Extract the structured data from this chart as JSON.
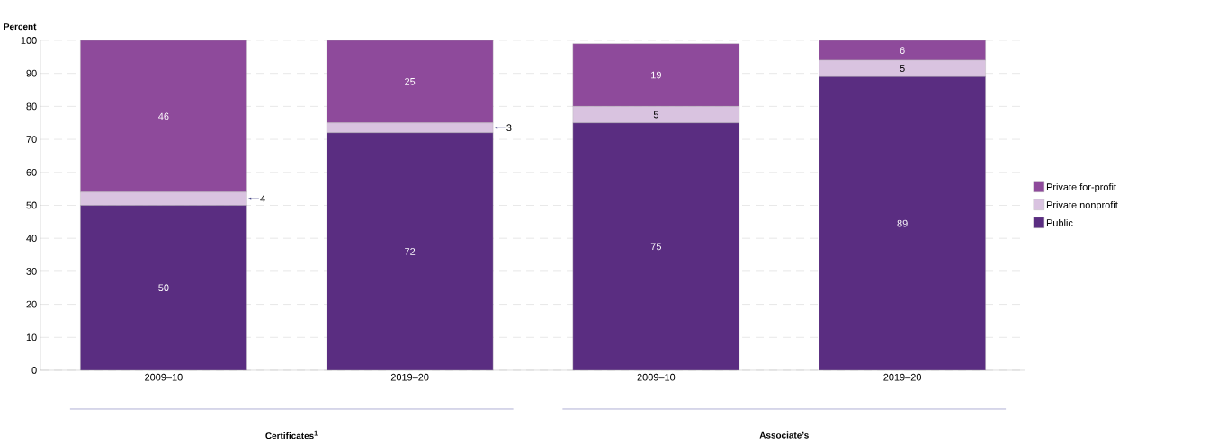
{
  "chart_data": {
    "type": "bar",
    "stacked": true,
    "ylabel": "Percent",
    "categories": [
      "2009–10",
      "2019–20",
      "2009–10",
      "2019–20"
    ],
    "series": [
      {
        "name": "Public",
        "color": "#5a2d81",
        "values": [
          50,
          72,
          75,
          89
        ]
      },
      {
        "name": "Private nonprofit",
        "color": "#d9c3e0",
        "values": [
          4,
          3,
          5,
          5
        ]
      },
      {
        "name": "Private for-profit",
        "color": "#8e4a9b",
        "values": [
          46,
          25,
          19,
          6
        ]
      }
    ],
    "ylim": [
      0,
      100
    ],
    "yticks": [
      0,
      10,
      20,
      30,
      40,
      50,
      60,
      70,
      80,
      90,
      100
    ],
    "grid": "y",
    "legend": "right",
    "data_labels": true,
    "annotations": [
      "Certificates$^{1}$",
      "Associate’s"
    ]
  }
}
